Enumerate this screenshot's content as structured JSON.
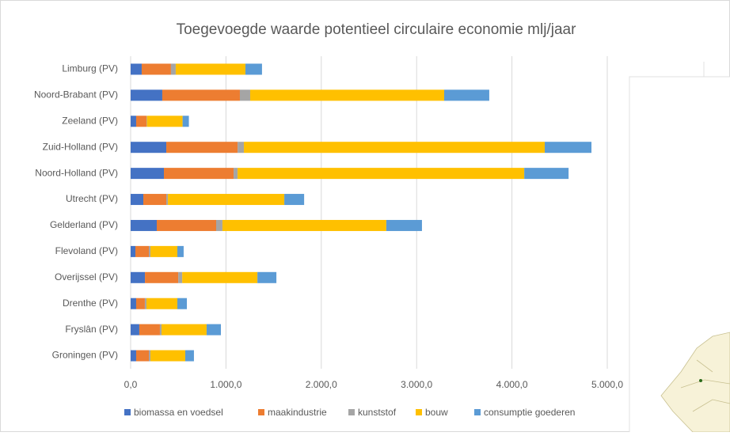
{
  "chart_data": {
    "type": "stacked-horizontal-bar",
    "title": "Toegevoegde waarde potentieel circulaire economie mlj/jaar",
    "categories": [
      "Limburg (PV)",
      "Noord-Brabant (PV)",
      "Zeeland (PV)",
      "Zuid-Holland (PV)",
      "Noord-Holland (PV)",
      "Utrecht (PV)",
      "Gelderland (PV)",
      "Flevoland (PV)",
      "Overijssel (PV)",
      "Drenthe (PV)",
      "Fryslân (PV)",
      "Groningen (PV)"
    ],
    "series": [
      {
        "name": "biomassa en voedsel",
        "color": "#4472c4",
        "values": [
          116,
          332,
          58,
          374,
          349,
          133,
          274,
          50,
          150,
          58,
          91,
          58
        ]
      },
      {
        "name": "maakindustrie",
        "color": "#ed7d31",
        "values": [
          307,
          814,
          108,
          748,
          731,
          241,
          623,
          141,
          349,
          91,
          216,
          133
        ]
      },
      {
        "name": "kunststof",
        "color": "#a5a5a5",
        "values": [
          50,
          108,
          5,
          66,
          42,
          17,
          66,
          17,
          42,
          17,
          17,
          17
        ]
      },
      {
        "name": "bouw",
        "color": "#ffc000",
        "values": [
          731,
          2035,
          374,
          3156,
          3007,
          1221,
          1719,
          282,
          789,
          324,
          473,
          365
        ]
      },
      {
        "name": "consumptie goederen",
        "color": "#5b9bd5",
        "values": [
          174,
          473,
          66,
          490,
          465,
          208,
          374,
          66,
          199,
          100,
          150,
          91
        ]
      }
    ],
    "xlim": [
      0,
      5000
    ],
    "xticks": [
      {
        "value": 0,
        "label": "0,0"
      },
      {
        "value": 1000,
        "label": "1.000,0"
      },
      {
        "value": 2000,
        "label": "2.000,0"
      },
      {
        "value": 3000,
        "label": "3.000,0"
      },
      {
        "value": 4000,
        "label": "4.000,0"
      },
      {
        "value": 5000,
        "label": "5.000,0"
      }
    ],
    "grid": true,
    "legend": "bottom"
  }
}
